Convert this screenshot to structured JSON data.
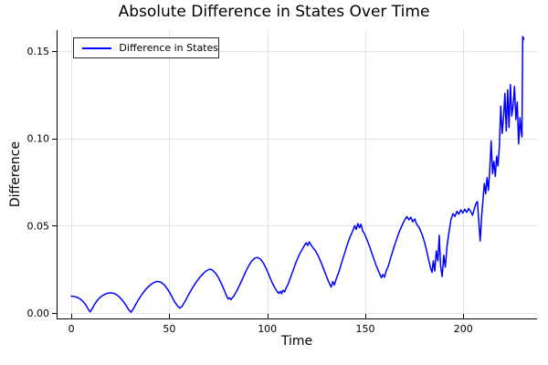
{
  "chart_data": {
    "type": "line",
    "title": "Absolute Difference in States Over Time",
    "xlabel": "Time",
    "ylabel": "Difference",
    "legend_position": "top-left",
    "grid": true,
    "xlim": [
      -7.5,
      237.6
    ],
    "ylim": [
      -0.0037,
      0.162
    ],
    "xticks": {
      "values": [
        0,
        50,
        100,
        150,
        200
      ],
      "labels": [
        "0",
        "50",
        "100",
        "150",
        "200"
      ]
    },
    "yticks": {
      "values": [
        0,
        0.05,
        0.1,
        0.15
      ],
      "labels": [
        "0.00",
        "0.05",
        "0.10",
        "0.15"
      ]
    },
    "colors": {
      "line": "#0000ff",
      "axis": "#000000",
      "grid": "#e4e4e4",
      "text": "#000000",
      "background": "#ffffff"
    },
    "series": [
      {
        "name": "Difference in States",
        "color": "#0000ff",
        "points": [
          [
            0,
            0.0096
          ],
          [
            1.5,
            0.0094
          ],
          [
            3,
            0.0089
          ],
          [
            4.5,
            0.008
          ],
          [
            6,
            0.0066
          ],
          [
            7.5,
            0.0044
          ],
          [
            8.7,
            0.002
          ],
          [
            9.6,
            0.0006
          ],
          [
            10.5,
            0.0022
          ],
          [
            11.8,
            0.0048
          ],
          [
            13,
            0.0068
          ],
          [
            14.5,
            0.0087
          ],
          [
            16,
            0.01
          ],
          [
            17.5,
            0.0109
          ],
          [
            19,
            0.0114
          ],
          [
            20.5,
            0.0115
          ],
          [
            22,
            0.0111
          ],
          [
            23.5,
            0.0101
          ],
          [
            25,
            0.0086
          ],
          [
            26.5,
            0.0066
          ],
          [
            28,
            0.0042
          ],
          [
            29.3,
            0.0018
          ],
          [
            30.4,
            0.0004
          ],
          [
            31.5,
            0.002
          ],
          [
            33,
            0.0052
          ],
          [
            34.5,
            0.008
          ],
          [
            36,
            0.0106
          ],
          [
            37.5,
            0.0128
          ],
          [
            39,
            0.0147
          ],
          [
            40.5,
            0.0162
          ],
          [
            42,
            0.0173
          ],
          [
            43.5,
            0.018
          ],
          [
            45,
            0.0179
          ],
          [
            46.5,
            0.017
          ],
          [
            48,
            0.0153
          ],
          [
            49.5,
            0.0129
          ],
          [
            51,
            0.01
          ],
          [
            52.5,
            0.0068
          ],
          [
            54,
            0.0042
          ],
          [
            55.3,
            0.0028
          ],
          [
            56.5,
            0.0038
          ],
          [
            58,
            0.0066
          ],
          [
            59.5,
            0.0098
          ],
          [
            61,
            0.0128
          ],
          [
            62.5,
            0.0156
          ],
          [
            64,
            0.0181
          ],
          [
            65.5,
            0.0203
          ],
          [
            67,
            0.0222
          ],
          [
            68.5,
            0.0238
          ],
          [
            70,
            0.0248
          ],
          [
            71,
            0.025
          ],
          [
            72,
            0.0245
          ],
          [
            73.5,
            0.0229
          ],
          [
            75,
            0.0203
          ],
          [
            76.5,
            0.0169
          ],
          [
            78,
            0.0131
          ],
          [
            79.2,
            0.0098
          ],
          [
            80,
            0.008
          ],
          [
            80.7,
            0.0087
          ],
          [
            81.4,
            0.0076
          ],
          [
            82.2,
            0.0088
          ],
          [
            83,
            0.0098
          ],
          [
            84.5,
            0.0128
          ],
          [
            86,
            0.0163
          ],
          [
            87.5,
            0.02
          ],
          [
            89,
            0.0237
          ],
          [
            90.5,
            0.027
          ],
          [
            92,
            0.0297
          ],
          [
            93.5,
            0.0313
          ],
          [
            95,
            0.0318
          ],
          [
            96.5,
            0.0308
          ],
          [
            98,
            0.0285
          ],
          [
            99.5,
            0.0252
          ],
          [
            101,
            0.0212
          ],
          [
            102.5,
            0.0172
          ],
          [
            104,
            0.014
          ],
          [
            105,
            0.0123
          ],
          [
            105.8,
            0.0112
          ],
          [
            106.6,
            0.0124
          ],
          [
            107.3,
            0.011
          ],
          [
            108,
            0.013
          ],
          [
            108.8,
            0.012
          ],
          [
            109.6,
            0.0143
          ],
          [
            110.5,
            0.0162
          ],
          [
            112,
            0.0208
          ],
          [
            113.5,
            0.0255
          ],
          [
            115,
            0.03
          ],
          [
            116.5,
            0.0338
          ],
          [
            118,
            0.0368
          ],
          [
            119,
            0.0388
          ],
          [
            119.8,
            0.0402
          ],
          [
            120.6,
            0.0386
          ],
          [
            121.4,
            0.0407
          ],
          [
            122.2,
            0.039
          ],
          [
            123,
            0.0378
          ],
          [
            124.5,
            0.0357
          ],
          [
            126,
            0.0326
          ],
          [
            127.5,
            0.0287
          ],
          [
            129,
            0.0243
          ],
          [
            130.5,
            0.02
          ],
          [
            131.7,
            0.0168
          ],
          [
            132.6,
            0.0148
          ],
          [
            133.4,
            0.018
          ],
          [
            134.2,
            0.016
          ],
          [
            135,
            0.019
          ],
          [
            136.5,
            0.0235
          ],
          [
            138,
            0.029
          ],
          [
            139.5,
            0.0345
          ],
          [
            141,
            0.0398
          ],
          [
            142.5,
            0.0443
          ],
          [
            143.7,
            0.0472
          ],
          [
            144.6,
            0.05
          ],
          [
            145.4,
            0.0478
          ],
          [
            146.2,
            0.0512
          ],
          [
            147,
            0.0488
          ],
          [
            147.8,
            0.0508
          ],
          [
            148.6,
            0.047
          ],
          [
            149.5,
            0.0455
          ],
          [
            151,
            0.0415
          ],
          [
            152.5,
            0.037
          ],
          [
            154,
            0.032
          ],
          [
            155.5,
            0.0272
          ],
          [
            157,
            0.0232
          ],
          [
            158.2,
            0.0202
          ],
          [
            159,
            0.022
          ],
          [
            159.8,
            0.0205
          ],
          [
            160.6,
            0.024
          ],
          [
            161.5,
            0.0262
          ],
          [
            163,
            0.0318
          ],
          [
            164.5,
            0.0372
          ],
          [
            166,
            0.0424
          ],
          [
            167.5,
            0.047
          ],
          [
            169,
            0.0508
          ],
          [
            170.2,
            0.0535
          ],
          [
            171.2,
            0.0552
          ],
          [
            172.2,
            0.0533
          ],
          [
            173.2,
            0.0548
          ],
          [
            174.2,
            0.0522
          ],
          [
            175.2,
            0.0538
          ],
          [
            176.2,
            0.0508
          ],
          [
            177.5,
            0.0488
          ],
          [
            179,
            0.0448
          ],
          [
            180.2,
            0.0405
          ],
          [
            181.2,
            0.036
          ],
          [
            182.2,
            0.031
          ],
          [
            183.2,
            0.0262
          ],
          [
            184,
            0.0232
          ],
          [
            184.7,
            0.0298
          ],
          [
            185.4,
            0.024
          ],
          [
            186.2,
            0.0355
          ],
          [
            187,
            0.0298
          ],
          [
            187.7,
            0.0445
          ],
          [
            188.4,
            0.0268
          ],
          [
            189.2,
            0.0208
          ],
          [
            190,
            0.033
          ],
          [
            190.8,
            0.0262
          ],
          [
            191.7,
            0.0385
          ],
          [
            192.7,
            0.0465
          ],
          [
            193.7,
            0.0535
          ],
          [
            194.7,
            0.0568
          ],
          [
            195.7,
            0.0552
          ],
          [
            196.7,
            0.0582
          ],
          [
            197.7,
            0.0565
          ],
          [
            198.7,
            0.059
          ],
          [
            199.7,
            0.0572
          ],
          [
            200.7,
            0.0594
          ],
          [
            201.7,
            0.0576
          ],
          [
            202.7,
            0.0598
          ],
          [
            203.7,
            0.0582
          ],
          [
            204.7,
            0.056
          ],
          [
            205.7,
            0.06
          ],
          [
            206.5,
            0.0628
          ],
          [
            207.2,
            0.0638
          ],
          [
            207.9,
            0.052
          ],
          [
            208.6,
            0.0412
          ],
          [
            209.3,
            0.0548
          ],
          [
            210,
            0.0645
          ],
          [
            210.7,
            0.0742
          ],
          [
            211.4,
            0.0682
          ],
          [
            212.1,
            0.0775
          ],
          [
            212.8,
            0.0702
          ],
          [
            213.5,
            0.0825
          ],
          [
            214.2,
            0.0985
          ],
          [
            214.9,
            0.0798
          ],
          [
            215.6,
            0.0868
          ],
          [
            216.3,
            0.0782
          ],
          [
            217,
            0.0898
          ],
          [
            217.7,
            0.0842
          ],
          [
            218.4,
            0.0958
          ],
          [
            219.1,
            0.1185
          ],
          [
            219.8,
            0.1028
          ],
          [
            220.5,
            0.1115
          ],
          [
            221.2,
            0.1258
          ],
          [
            221.9,
            0.1042
          ],
          [
            222.6,
            0.1278
          ],
          [
            223.3,
            0.1062
          ],
          [
            224,
            0.1308
          ],
          [
            224.7,
            0.1128
          ],
          [
            225.4,
            0.1188
          ],
          [
            226.1,
            0.1298
          ],
          [
            226.8,
            0.1108
          ],
          [
            227.5,
            0.1208
          ],
          [
            228.2,
            0.0968
          ],
          [
            228.9,
            0.1118
          ],
          [
            229.5,
            0.1038
          ],
          [
            229.9,
            0.1008
          ],
          [
            230.3,
            0.1583
          ],
          [
            230.9,
            0.1568
          ]
        ]
      }
    ]
  }
}
